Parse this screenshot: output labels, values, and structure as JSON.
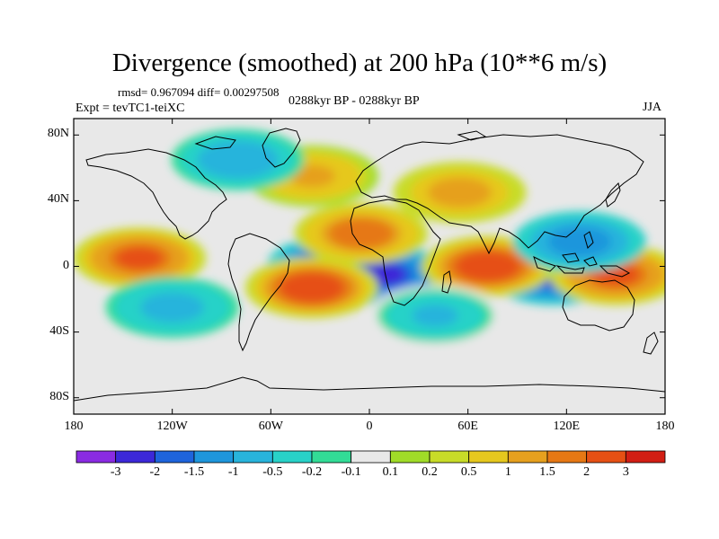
{
  "title": "Divergence (smoothed) at 200 hPa (10**6 m/s)",
  "stats": "rmsd= 0.967094  diff= 0.00297508",
  "experiment": "Expt = tevTC1-teiXC",
  "period": "0288kyr BP - 0288kyr BP",
  "season": "JJA",
  "axes": {
    "lat_ticks": [
      {
        "label": "80N",
        "lat": 80
      },
      {
        "label": "40N",
        "lat": 40
      },
      {
        "label": "0",
        "lat": 0
      },
      {
        "label": "40S",
        "lat": -40
      },
      {
        "label": "80S",
        "lat": -80
      }
    ],
    "lon_ticks": [
      {
        "label": "180",
        "lon": -180
      },
      {
        "label": "120W",
        "lon": -120
      },
      {
        "label": "60W",
        "lon": -60
      },
      {
        "label": "0",
        "lon": 0
      },
      {
        "label": "60E",
        "lon": 60
      },
      {
        "label": "120E",
        "lon": 120
      },
      {
        "label": "180",
        "lon": 180
      }
    ]
  },
  "colorbar": {
    "colors": [
      "#8a2be2",
      "#3c28d8",
      "#1e64dc",
      "#1e96dc",
      "#28b4dc",
      "#28d2c8",
      "#32dc96",
      "#e8e8e8",
      "#a0dc28",
      "#c8dc28",
      "#e6c81e",
      "#e6a01e",
      "#e67814",
      "#e65014",
      "#d21e14"
    ],
    "labels": [
      "-3",
      "-2",
      "-1.5",
      "-1",
      "-0.5",
      "-0.2",
      "-0.1",
      "0.1",
      "0.2",
      "0.5",
      "1",
      "1.5",
      "2",
      "3"
    ]
  },
  "map_features": {
    "background_color": "#e8e8e8",
    "anomalies": [
      {
        "name": "trop-atlantic-min",
        "lon": -22,
        "lat": 0,
        "value": -3.2
      },
      {
        "name": "gulf-guinea-min",
        "lon": 8,
        "lat": -5,
        "value": -2.6
      },
      {
        "name": "west-pacific-min",
        "lon": 112,
        "lat": -5,
        "value": -2.4
      },
      {
        "name": "east-pacific-max",
        "lon": -140,
        "lat": 5,
        "value": 2.6
      },
      {
        "name": "south-atlantic-max",
        "lon": -35,
        "lat": -13,
        "value": 2.8
      },
      {
        "name": "north-africa-max",
        "lon": -5,
        "lat": 20,
        "value": 2.2
      },
      {
        "name": "indian-ocean-max",
        "lon": 72,
        "lat": 0,
        "value": 2.8
      },
      {
        "name": "sw-pacific-max",
        "lon": 150,
        "lat": -5,
        "value": 2.6
      },
      {
        "name": "central-asia-max",
        "lon": 55,
        "lat": 45,
        "value": 1.4
      },
      {
        "name": "north-atlantic-max",
        "lon": -35,
        "lat": 55,
        "value": 1.2
      },
      {
        "name": "indonesia-min",
        "lon": 128,
        "lat": 15,
        "value": -1.5
      },
      {
        "name": "arctic-min",
        "lon": -80,
        "lat": 65,
        "value": -1.0
      },
      {
        "name": "s-pacific-min",
        "lon": -120,
        "lat": -25,
        "value": -0.8
      },
      {
        "name": "s-indian-min",
        "lon": 40,
        "lat": -30,
        "value": -0.6
      }
    ]
  }
}
